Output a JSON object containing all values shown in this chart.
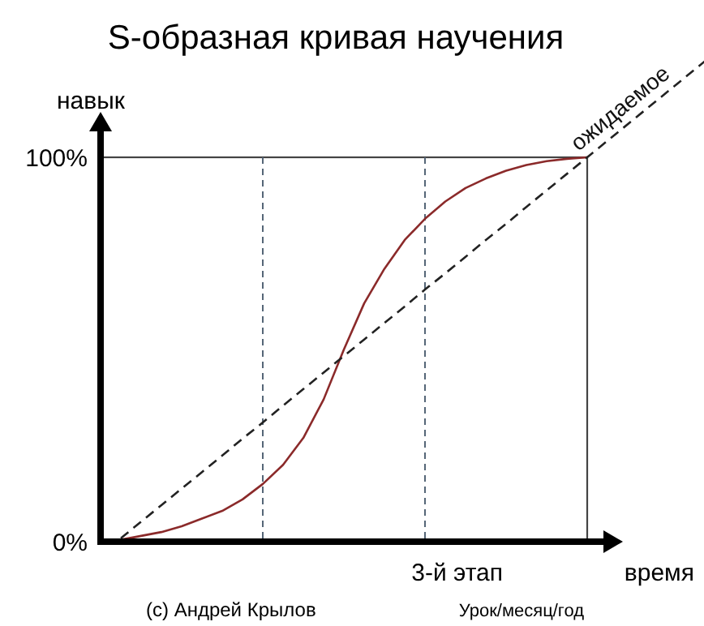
{
  "chart_data": {
    "type": "line",
    "title": "S-образная кривая научения",
    "xlabel": "время",
    "ylabel": "навык",
    "categories": [
      null,
      null,
      null,
      null,
      null,
      null,
      null,
      null,
      null,
      null,
      null,
      null,
      null,
      null,
      null,
      null,
      null,
      null,
      null,
      null,
      null,
      null,
      null,
      null,
      null
    ],
    "series": [
      {
        "color": "#8b2a2a",
        "line_style": "solid",
        "values": [
          0,
          0.5,
          1.5,
          2.5,
          4,
          6,
          8,
          11,
          15,
          20,
          27,
          37,
          50,
          62,
          71,
          78.5,
          84,
          88.5,
          92,
          94.5,
          96.5,
          98,
          99,
          99.6,
          100
        ]
      },
      {
        "name": "ожидаемое",
        "color": "#222222",
        "line_style": "dashed",
        "values": [
          null,
          0.9,
          5.2,
          9.5,
          13.8,
          18.1,
          22.4,
          26.8,
          31,
          35.4,
          39.7,
          44,
          48.3,
          52.6,
          56.9,
          61.2,
          65.6,
          69.8,
          74.1,
          78.5,
          82.7,
          87.1,
          91.4,
          95.7,
          100
        ]
      }
    ],
    "ylim": [
      0,
      100
    ],
    "yticks": [
      {
        "value": 0,
        "label": "0%"
      },
      {
        "value": 100,
        "label": "100%"
      }
    ],
    "annotations": [
      "3-й этап",
      "Урок/месяц/год",
      "(c) Андрей Крылов"
    ],
    "marker": "none"
  }
}
